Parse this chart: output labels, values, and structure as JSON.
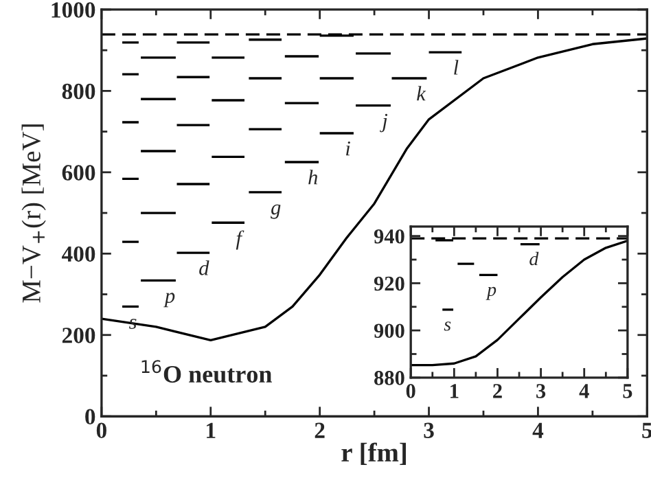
{
  "chart_data": [
    {
      "type": "line",
      "xlabel": "r [fm]",
      "ylabel": "M−V$_{+}$(r) [MeV]",
      "xlim": [
        0,
        5
      ],
      "ylim": [
        0,
        1000
      ],
      "xticks": [
        0,
        1,
        2,
        3,
        4,
        5
      ],
      "yticks": [
        0,
        200,
        400,
        600,
        800,
        1000
      ],
      "grid": false,
      "legend": false,
      "marker": "none",
      "line_style": "solid",
      "ref_lines": [
        {
          "axis": "y",
          "value": 939,
          "line_style": "dashed",
          "color": "#000000"
        }
      ],
      "annotations": [
        "$^{16}$O neutron"
      ],
      "series": [
        {
          "color": "#000000",
          "x": [
            0,
            0.5,
            1.0,
            1.5,
            1.75,
            2.0,
            2.25,
            2.5,
            2.8,
            3.0,
            3.5,
            4.0,
            4.5,
            5.0
          ],
          "values": [
            240,
            220,
            187,
            220,
            270,
            348,
            440,
            523,
            659,
            730,
            831,
            882,
            915,
            929
          ]
        },
        {
          "name": "s",
          "color": "#000000",
          "x": [
            0.19,
            0.34
          ],
          "values": [
            270,
            270
          ]
        },
        {
          "color": "#000000",
          "x": [
            0.19,
            0.34
          ],
          "values": [
            429,
            429
          ]
        },
        {
          "color": "#000000",
          "x": [
            0.19,
            0.34
          ],
          "values": [
            584,
            584
          ]
        },
        {
          "color": "#000000",
          "x": [
            0.19,
            0.34
          ],
          "values": [
            723,
            723
          ]
        },
        {
          "color": "#000000",
          "x": [
            0.19,
            0.34
          ],
          "values": [
            841,
            841
          ]
        },
        {
          "color": "#000000",
          "x": [
            0.19,
            0.34
          ],
          "values": [
            919,
            919
          ]
        },
        {
          "name": "p",
          "color": "#000000",
          "x": [
            0.36,
            0.68
          ],
          "values": [
            334,
            334
          ]
        },
        {
          "color": "#000000",
          "x": [
            0.36,
            0.68
          ],
          "values": [
            500,
            500
          ]
        },
        {
          "color": "#000000",
          "x": [
            0.36,
            0.68
          ],
          "values": [
            652,
            652
          ]
        },
        {
          "color": "#000000",
          "x": [
            0.36,
            0.68
          ],
          "values": [
            780,
            780
          ]
        },
        {
          "color": "#000000",
          "x": [
            0.36,
            0.68
          ],
          "values": [
            882,
            882
          ]
        },
        {
          "name": "d",
          "color": "#000000",
          "x": [
            0.69,
            0.99
          ],
          "values": [
            402,
            402
          ]
        },
        {
          "color": "#000000",
          "x": [
            0.69,
            0.99
          ],
          "values": [
            571,
            571
          ]
        },
        {
          "color": "#000000",
          "x": [
            0.69,
            0.99
          ],
          "values": [
            716,
            716
          ]
        },
        {
          "color": "#000000",
          "x": [
            0.69,
            0.99
          ],
          "values": [
            834,
            834
          ]
        },
        {
          "color": "#000000",
          "x": [
            0.69,
            0.99
          ],
          "values": [
            919,
            919
          ]
        },
        {
          "name": "f",
          "color": "#000000",
          "x": [
            1.01,
            1.31
          ],
          "values": [
            476,
            476
          ]
        },
        {
          "color": "#000000",
          "x": [
            1.01,
            1.31
          ],
          "values": [
            638,
            638
          ]
        },
        {
          "color": "#000000",
          "x": [
            1.01,
            1.31
          ],
          "values": [
            777,
            777
          ]
        },
        {
          "color": "#000000",
          "x": [
            1.01,
            1.31
          ],
          "values": [
            882,
            882
          ]
        },
        {
          "name": "g",
          "color": "#000000",
          "x": [
            1.35,
            1.65
          ],
          "values": [
            551,
            551
          ]
        },
        {
          "color": "#000000",
          "x": [
            1.35,
            1.65
          ],
          "values": [
            706,
            706
          ]
        },
        {
          "color": "#000000",
          "x": [
            1.35,
            1.65
          ],
          "values": [
            831,
            831
          ]
        },
        {
          "color": "#000000",
          "x": [
            1.35,
            1.65
          ],
          "values": [
            926,
            926
          ]
        },
        {
          "name": "h",
          "color": "#000000",
          "x": [
            1.68,
            1.99
          ],
          "values": [
            625,
            625
          ]
        },
        {
          "color": "#000000",
          "x": [
            1.68,
            1.99
          ],
          "values": [
            770,
            770
          ]
        },
        {
          "color": "#000000",
          "x": [
            1.68,
            1.99
          ],
          "values": [
            885,
            885
          ]
        },
        {
          "name": "i",
          "color": "#000000",
          "x": [
            2.0,
            2.31
          ],
          "values": [
            696,
            696
          ]
        },
        {
          "color": "#000000",
          "x": [
            2.0,
            2.31
          ],
          "values": [
            831,
            831
          ]
        },
        {
          "color": "#000000",
          "x": [
            2.0,
            2.31
          ],
          "values": [
            936,
            936
          ]
        },
        {
          "name": "j",
          "color": "#000000",
          "x": [
            2.33,
            2.65
          ],
          "values": [
            764,
            764
          ]
        },
        {
          "color": "#000000",
          "x": [
            2.33,
            2.65
          ],
          "values": [
            892,
            892
          ]
        },
        {
          "name": "k",
          "color": "#000000",
          "x": [
            2.66,
            2.98
          ],
          "values": [
            831,
            831
          ]
        },
        {
          "name": "l",
          "color": "#000000",
          "x": [
            3.0,
            3.3
          ],
          "values": [
            895,
            895
          ]
        }
      ]
    },
    {
      "type": "line",
      "xlim": [
        0,
        5
      ],
      "ylim": [
        880,
        944
      ],
      "xticks": [
        0,
        1,
        2,
        3,
        4,
        5
      ],
      "yticks": [
        880,
        900,
        920,
        940
      ],
      "grid": false,
      "legend": false,
      "marker": "none",
      "line_style": "solid",
      "ref_lines": [
        {
          "axis": "y",
          "value": 939,
          "line_style": "dashed",
          "color": "#000000"
        }
      ],
      "series": [
        {
          "color": "#000000",
          "x": [
            0,
            0.5,
            1.0,
            1.5,
            2.0,
            2.5,
            3.0,
            3.5,
            4.0,
            4.5,
            5.0
          ],
          "values": [
            885.3,
            885.3,
            886,
            889,
            896,
            905,
            914,
            922.6,
            930,
            935,
            938
          ]
        },
        {
          "name": "s",
          "color": "#000000",
          "x": [
            0.73,
            0.98
          ],
          "values": [
            908.8,
            908.8
          ]
        },
        {
          "color": "#000000",
          "x": [
            0.57,
            0.98
          ],
          "values": [
            938.2,
            938.2
          ]
        },
        {
          "name": "p",
          "color": "#000000",
          "x": [
            1.58,
            2.0
          ],
          "values": [
            923.5,
            923.5
          ]
        },
        {
          "color": "#000000",
          "x": [
            1.08,
            1.46
          ],
          "values": [
            928.2,
            928.2
          ]
        },
        {
          "name": "d",
          "color": "#000000",
          "x": [
            2.53,
            2.97
          ],
          "values": [
            936.5,
            936.5
          ]
        }
      ]
    }
  ]
}
